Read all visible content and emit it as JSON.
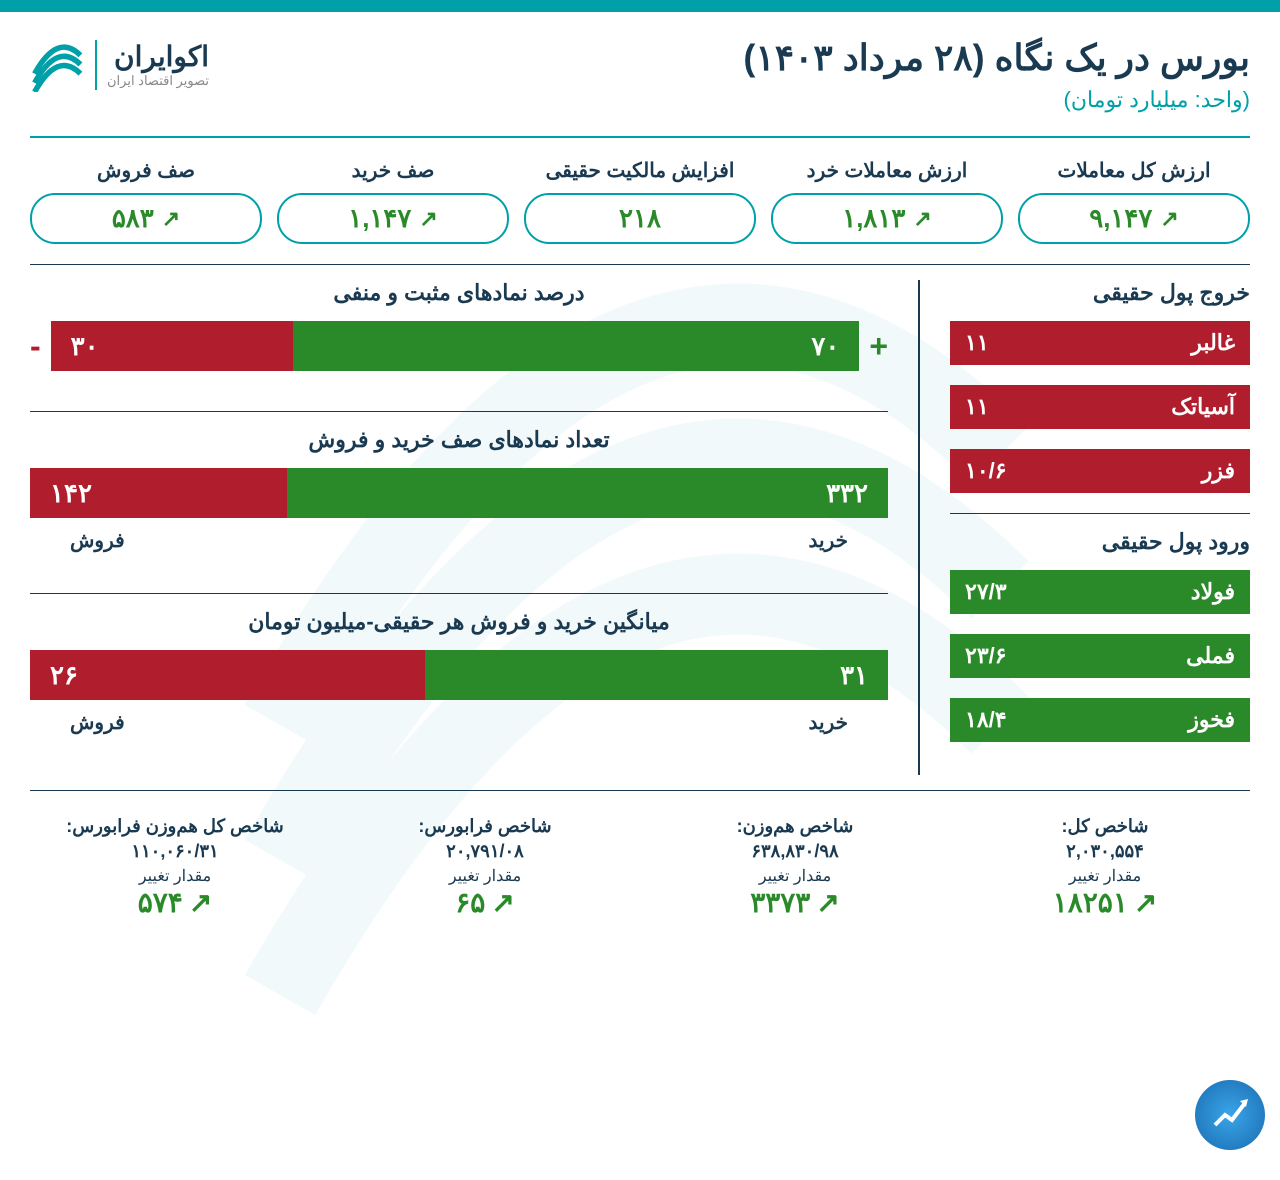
{
  "colors": {
    "teal": "#00a0a8",
    "navy": "#1a3a52",
    "green": "#2a8a2a",
    "red": "#b01e2e",
    "white": "#ffffff"
  },
  "header": {
    "title": "بورس در یک نگاه (۲۸ مرداد ۱۴۰۳)",
    "subtitle": "(واحد: میلیارد تومان)",
    "logo_name": "اکوایران",
    "logo_sub": "تصویر اقتصاد ایران"
  },
  "metrics": [
    {
      "label": "ارزش کل معاملات",
      "value": "۹,۱۴۷",
      "arrow": true
    },
    {
      "label": "ارزش معاملات خرد",
      "value": "۱,۸۱۳",
      "arrow": true
    },
    {
      "label": "افزایش مالکیت حقیقی",
      "value": "۲۱۸",
      "arrow": false
    },
    {
      "label": "صف خرید",
      "value": "۱,۱۴۷",
      "arrow": true
    },
    {
      "label": "صف فروش",
      "value": "۵۸۳",
      "arrow": true
    }
  ],
  "outflow": {
    "title": "خروج پول حقیقی",
    "items": [
      {
        "name": "غالبر",
        "value": "۱۱"
      },
      {
        "name": "آسیاتک",
        "value": "۱۱"
      },
      {
        "name": "فزر",
        "value": "۱۰/۶"
      }
    ]
  },
  "inflow": {
    "title": "ورود پول حقیقی",
    "items": [
      {
        "name": "فولاد",
        "value": "۲۷/۳"
      },
      {
        "name": "فملی",
        "value": "۲۳/۶"
      },
      {
        "name": "فخوز",
        "value": "۱۸/۴"
      }
    ]
  },
  "bar1": {
    "title": "درصد نمادهای مثبت و منفی",
    "green_val": "۷۰",
    "green_pct": 70,
    "red_val": "۳۰",
    "red_pct": 30,
    "show_signs": true
  },
  "bar2": {
    "title": "تعداد نمادهای صف خرید و فروش",
    "green_val": "۳۳۲",
    "green_pct": 70,
    "red_val": "۱۴۲",
    "red_pct": 30,
    "green_label": "خرید",
    "red_label": "فروش"
  },
  "bar3": {
    "title": "میانگین خرید و فروش هر حقیقی-میلیون تومان",
    "green_val": "۳۱",
    "green_pct": 54,
    "red_val": "۲۶",
    "red_pct": 46,
    "green_label": "خرید",
    "red_label": "فروش"
  },
  "indices": [
    {
      "title": "شاخص کل:",
      "value": "۲,۰۳۰,۵۵۴",
      "change_label": "مقدار تغییر",
      "change": "۱۸۲۵۱"
    },
    {
      "title": "شاخص هم‌وزن:",
      "value": "۶۳۸,۸۳۰/۹۸",
      "change_label": "مقدار تغییر",
      "change": "۳۳۷۳"
    },
    {
      "title": "شاخص فرابورس:",
      "value": "۲۰,۷۹۱/۰۸",
      "change_label": "مقدار تغییر",
      "change": "۶۵"
    },
    {
      "title": "شاخص کل هم‌وزن فرابورس:",
      "value": "۱۱۰,۰۶۰/۳۱",
      "change_label": "مقدار تغییر",
      "change": "۵۷۴"
    }
  ]
}
